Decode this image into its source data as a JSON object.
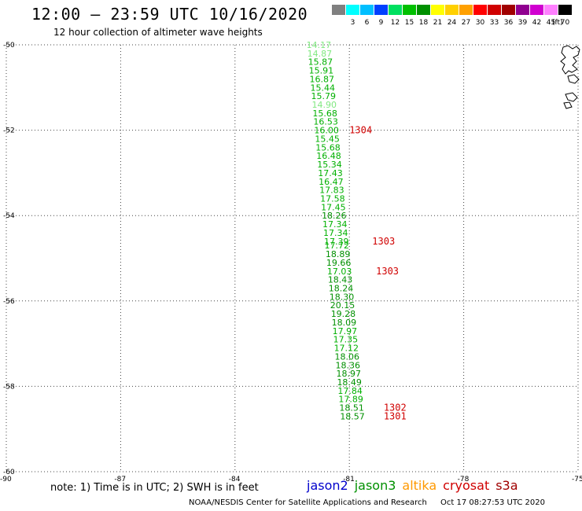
{
  "title": "12:00 – 23:59 UTC 10/16/2020",
  "subtitle": "12 hour collection of altimeter wave heights",
  "color_scale": {
    "unit": "(ft)",
    "swatches": [
      {
        "label": "",
        "color": "#808080"
      },
      {
        "label": "3",
        "color": "#00ffff"
      },
      {
        "label": "6",
        "color": "#00bfff"
      },
      {
        "label": "9",
        "color": "#0040ff"
      },
      {
        "label": "12",
        "color": "#00e060"
      },
      {
        "label": "15",
        "color": "#00c000"
      },
      {
        "label": "18",
        "color": "#009000"
      },
      {
        "label": "21",
        "color": "#ffff00"
      },
      {
        "label": "24",
        "color": "#ffd000"
      },
      {
        "label": "27",
        "color": "#ffa000"
      },
      {
        "label": "30",
        "color": "#ff0000"
      },
      {
        "label": "33",
        "color": "#d00000"
      },
      {
        "label": "36",
        "color": "#a00000"
      },
      {
        "label": "39",
        "color": "#900090"
      },
      {
        "label": "42",
        "color": "#d000d0"
      },
      {
        "label": "45",
        "color": "#ff80ff"
      },
      {
        "label": "70",
        "color": "#000000"
      }
    ]
  },
  "axes": {
    "lat_labels": [
      "-50",
      "-52",
      "-54",
      "-56",
      "-58",
      "-60"
    ],
    "lon_labels": [
      "-90",
      "-87",
      "-84",
      "-81",
      "-78",
      "-75"
    ]
  },
  "chart_data": {
    "type": "scatter",
    "xlim": [
      -90,
      -75
    ],
    "ylim": [
      -60,
      -50
    ],
    "grid": true,
    "wave_heights": [
      {
        "lat": -50.0,
        "lon": -81.8,
        "value": "14.17",
        "color": "#80e880"
      },
      {
        "lat": -50.2,
        "lon": -81.78,
        "value": "14.87",
        "color": "#80e880"
      },
      {
        "lat": -50.4,
        "lon": -81.76,
        "value": "15.87",
        "color": "#00b000"
      },
      {
        "lat": -50.6,
        "lon": -81.74,
        "value": "15.91",
        "color": "#00b000"
      },
      {
        "lat": -50.8,
        "lon": -81.72,
        "value": "16.87",
        "color": "#00b000"
      },
      {
        "lat": -51.0,
        "lon": -81.7,
        "value": "15.44",
        "color": "#00b000"
      },
      {
        "lat": -51.2,
        "lon": -81.68,
        "value": "15.79",
        "color": "#00b000"
      },
      {
        "lat": -51.4,
        "lon": -81.66,
        "value": "14.90",
        "color": "#80e880"
      },
      {
        "lat": -51.6,
        "lon": -81.64,
        "value": "15.68",
        "color": "#00b000"
      },
      {
        "lat": -51.8,
        "lon": -81.62,
        "value": "16.53",
        "color": "#00b000"
      },
      {
        "lat": -52.0,
        "lon": -81.6,
        "value": "16.00",
        "color": "#00b000"
      },
      {
        "lat": -52.2,
        "lon": -81.58,
        "value": "15.45",
        "color": "#00b000"
      },
      {
        "lat": -52.4,
        "lon": -81.56,
        "value": "15.68",
        "color": "#00b000"
      },
      {
        "lat": -52.6,
        "lon": -81.54,
        "value": "16.48",
        "color": "#00b000"
      },
      {
        "lat": -52.8,
        "lon": -81.52,
        "value": "15.34",
        "color": "#00b000"
      },
      {
        "lat": -53.0,
        "lon": -81.5,
        "value": "17.43",
        "color": "#00b000"
      },
      {
        "lat": -53.2,
        "lon": -81.48,
        "value": "16.47",
        "color": "#00b000"
      },
      {
        "lat": -53.4,
        "lon": -81.46,
        "value": "17.83",
        "color": "#00b000"
      },
      {
        "lat": -53.6,
        "lon": -81.44,
        "value": "17.58",
        "color": "#00b000"
      },
      {
        "lat": -53.8,
        "lon": -81.42,
        "value": "17.45",
        "color": "#00b000"
      },
      {
        "lat": -54.0,
        "lon": -81.4,
        "value": "18.26",
        "color": "#009000"
      },
      {
        "lat": -54.2,
        "lon": -81.38,
        "value": "17.34",
        "color": "#00b000"
      },
      {
        "lat": -54.4,
        "lon": -81.36,
        "value": "17.34",
        "color": "#00b000"
      },
      {
        "lat": -54.6,
        "lon": -81.34,
        "value": "17.39",
        "color": "#00b000"
      },
      {
        "lat": -54.7,
        "lon": -81.33,
        "value": "17.72",
        "color": "#00b000"
      },
      {
        "lat": -54.9,
        "lon": -81.3,
        "value": "18.89",
        "color": "#009000"
      },
      {
        "lat": -55.1,
        "lon": -81.28,
        "value": "19.66",
        "color": "#009000"
      },
      {
        "lat": -55.3,
        "lon": -81.26,
        "value": "17.03",
        "color": "#00b000"
      },
      {
        "lat": -55.5,
        "lon": -81.24,
        "value": "18.43",
        "color": "#009000"
      },
      {
        "lat": -55.7,
        "lon": -81.22,
        "value": "18.24",
        "color": "#009000"
      },
      {
        "lat": -55.9,
        "lon": -81.2,
        "value": "18.30",
        "color": "#009000"
      },
      {
        "lat": -56.1,
        "lon": -81.18,
        "value": "20.15",
        "color": "#009000"
      },
      {
        "lat": -56.3,
        "lon": -81.16,
        "value": "19.28",
        "color": "#009000"
      },
      {
        "lat": -56.5,
        "lon": -81.14,
        "value": "18.09",
        "color": "#009000"
      },
      {
        "lat": -56.7,
        "lon": -81.12,
        "value": "17.97",
        "color": "#00b000"
      },
      {
        "lat": -56.9,
        "lon": -81.1,
        "value": "17.35",
        "color": "#00b000"
      },
      {
        "lat": -57.1,
        "lon": -81.08,
        "value": "17.12",
        "color": "#00b000"
      },
      {
        "lat": -57.3,
        "lon": -81.06,
        "value": "18.06",
        "color": "#009000"
      },
      {
        "lat": -57.5,
        "lon": -81.04,
        "value": "18.36",
        "color": "#009000"
      },
      {
        "lat": -57.7,
        "lon": -81.02,
        "value": "18.97",
        "color": "#009000"
      },
      {
        "lat": -57.9,
        "lon": -81.0,
        "value": "18.49",
        "color": "#009000"
      },
      {
        "lat": -58.1,
        "lon": -80.98,
        "value": "17.84",
        "color": "#00b000"
      },
      {
        "lat": -58.3,
        "lon": -80.96,
        "value": "17.89",
        "color": "#00b000"
      },
      {
        "lat": -58.5,
        "lon": -80.94,
        "value": "18.51",
        "color": "#009000"
      },
      {
        "lat": -58.7,
        "lon": -80.92,
        "value": "18.57",
        "color": "#009000"
      }
    ],
    "time_markers": [
      {
        "lat": -52.0,
        "lon": -81.0,
        "label": "1304",
        "color": "#d00000"
      },
      {
        "lat": -54.6,
        "lon": -80.4,
        "label": "1303",
        "color": "#d00000"
      },
      {
        "lat": -55.3,
        "lon": -80.3,
        "label": "1303",
        "color": "#d00000"
      },
      {
        "lat": -58.5,
        "lon": -80.1,
        "label": "1302",
        "color": "#d00000"
      },
      {
        "lat": -58.7,
        "lon": -80.1,
        "label": "1301",
        "color": "#d00000"
      }
    ]
  },
  "note": "note: 1) Time is in UTC; 2) SWH is in feet",
  "satellites": [
    {
      "name": "jason2",
      "color": "#0000cc"
    },
    {
      "name": "jason3",
      "color": "#009000"
    },
    {
      "name": "altika",
      "color": "#ff9900"
    },
    {
      "name": "cryosat",
      "color": "#d00000"
    },
    {
      "name": "s3a",
      "color": "#a00000"
    }
  ],
  "footer": {
    "credit": "NOAA/NESDIS Center for Satellite Applications and Research",
    "timestamp": "Oct 17 08:27:53 UTC 2020"
  }
}
